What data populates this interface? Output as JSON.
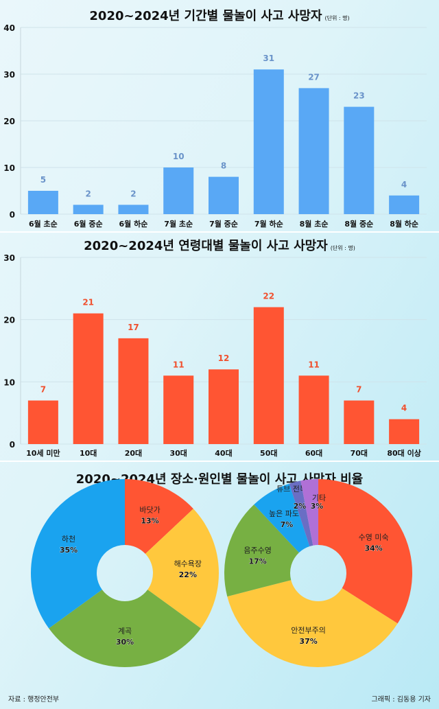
{
  "chart_data": [
    {
      "type": "bar",
      "title": "2020~2024년 기간별 물놀이 사고 사망자",
      "unit": "(단위 : 명)",
      "categories": [
        "6월 초순",
        "6월 중순",
        "6월 하순",
        "7월 초순",
        "7월 중순",
        "7월 하순",
        "8월 초순",
        "8월 중순",
        "8월 하순"
      ],
      "values": [
        5,
        2,
        2,
        10,
        8,
        31,
        27,
        23,
        4
      ],
      "ylim": [
        0,
        40
      ],
      "yticks": [
        0,
        10,
        20,
        30,
        40
      ],
      "grid": true,
      "color": "#59a8f5",
      "label_color": "#6a93c9"
    },
    {
      "type": "bar",
      "title": "2020~2024년 연령대별 물놀이 사고 사망자",
      "unit": "(단위 : 명)",
      "categories": [
        "10세 미만",
        "10대",
        "20대",
        "30대",
        "40대",
        "50대",
        "60대",
        "70대",
        "80대 이상"
      ],
      "values": [
        7,
        21,
        17,
        11,
        12,
        22,
        11,
        7,
        4
      ],
      "ylim": [
        0,
        30
      ],
      "yticks": [
        0,
        10,
        20,
        30
      ],
      "grid": true,
      "color": "#ff5533",
      "label_color": "#f0502e"
    },
    {
      "type": "pie",
      "title": "2020~2024년 장소·원인별 물놀이 사고 사망자 비율",
      "donut": true,
      "slices": [
        {
          "label": "바닷가",
          "value": 13,
          "color": "#ff5533"
        },
        {
          "label": "해수욕장",
          "value": 22,
          "color": "#ffc83d"
        },
        {
          "label": "계곡",
          "value": 30,
          "color": "#77b043"
        },
        {
          "label": "하천",
          "value": 35,
          "color": "#1aa3ef"
        }
      ]
    },
    {
      "type": "pie",
      "donut": true,
      "slices": [
        {
          "label": "수영 미숙",
          "value": 34,
          "color": "#ff5533"
        },
        {
          "label": "안전부주의",
          "value": 37,
          "color": "#ffc83d"
        },
        {
          "label": "음주수영",
          "value": 17,
          "color": "#77b043"
        },
        {
          "label": "높은 파도",
          "value": 7,
          "color": "#1aa3ef"
        },
        {
          "label": "튜브 전복",
          "value": 2,
          "color": "#6a6ec4"
        },
        {
          "label": "기타",
          "value": 3,
          "color": "#b070d6"
        }
      ]
    }
  ],
  "footer": {
    "source": "자료 : 행정안전부",
    "credit": "그래픽 : 김동용 기자"
  }
}
